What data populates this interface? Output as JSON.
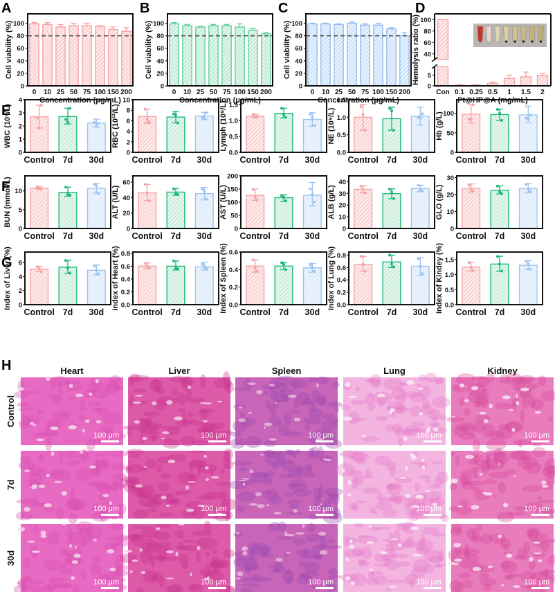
{
  "colors": {
    "control": "#f7a3a3",
    "d7": "#1fb878",
    "d30": "#9ec4f2",
    "panelA": "#f7a3a3",
    "panelB": "#5fcf9f",
    "panelC": "#8fbcf2",
    "panelD": "#f7a3a3",
    "axis": "#111111",
    "threshold": "#555555"
  },
  "chart_data": [
    {
      "id": "A",
      "type": "bar",
      "panel_label": "A",
      "ylabel": "Cell viability (%)",
      "xlabel": "Concentration (μg/mL)",
      "categories": [
        "0",
        "10",
        "25",
        "50",
        "75",
        "100",
        "150",
        "200"
      ],
      "values": [
        99,
        98,
        94,
        96,
        96,
        95,
        90,
        87
      ],
      "errors": [
        2,
        3,
        4,
        4,
        4,
        1,
        4,
        6
      ],
      "ylim": [
        0,
        115
      ],
      "yticks": [
        0,
        20,
        40,
        60,
        80,
        100
      ],
      "reference_line": 80,
      "color_key": "panelA"
    },
    {
      "id": "B",
      "type": "bar",
      "panel_label": "B",
      "ylabel": "Cell viability (%)",
      "xlabel": "Concentration (μg/mL)",
      "categories": [
        "0",
        "10",
        "25",
        "50",
        "75",
        "100",
        "150",
        "200"
      ],
      "values": [
        99,
        96,
        94,
        96,
        96,
        94,
        89,
        83
      ],
      "errors": [
        2,
        2,
        1,
        2,
        2,
        5,
        3,
        2
      ],
      "ylim": [
        0,
        115
      ],
      "yticks": [
        0,
        20,
        40,
        60,
        80,
        100
      ],
      "reference_line": 80,
      "color_key": "panelB"
    },
    {
      "id": "C",
      "type": "bar",
      "panel_label": "C",
      "ylabel": "Cell viability (%)",
      "xlabel": "Concentration (μg/mL)",
      "categories": [
        "0",
        "10",
        "25",
        "50",
        "75",
        "100",
        "150",
        "200"
      ],
      "values": [
        99,
        99,
        98,
        100,
        97,
        97,
        91,
        80
      ],
      "errors": [
        1,
        1,
        1,
        2,
        2,
        3,
        2,
        5
      ],
      "ylim": [
        0,
        115
      ],
      "yticks": [
        0,
        20,
        40,
        60,
        80,
        100
      ],
      "reference_line": 80,
      "color_key": "panelC"
    },
    {
      "id": "D",
      "type": "bar",
      "panel_label": "D",
      "ylabel": "Hemolysis ratio (%)",
      "xlabel": "Pt@HP@A (mg/mL)",
      "categories": [
        "Con",
        "0.1",
        "0.25",
        "0.5",
        "1",
        "1.5",
        "2"
      ],
      "values": [
        100,
        0.3,
        0.3,
        1.2,
        3.5,
        4.2,
        4.8
      ],
      "errors": [
        0,
        0.3,
        0.2,
        0.6,
        1.5,
        2.2,
        1.0
      ],
      "broken_axis": {
        "lower": [
          0,
          9
        ],
        "upper": [
          30,
          110
        ]
      },
      "yticks_lower": [
        0,
        5
      ],
      "yticks_upper": [
        40,
        60,
        80,
        100
      ],
      "inset": "photo of hemolysis tubes",
      "color_key": "panelD"
    }
  ],
  "groups": [
    "Control",
    "7d",
    "30d"
  ],
  "row_E": {
    "label": "E",
    "charts": [
      {
        "ylabel": "WBC (10⁹/L)",
        "ylim": [
          0,
          4
        ],
        "yticks": [
          "0",
          "1",
          "2",
          "3",
          "4"
        ],
        "ytick_values": [
          0,
          1,
          2,
          3,
          4
        ],
        "values": [
          2.7,
          2.72,
          2.22
        ],
        "err_lo": [
          1.85,
          2.15,
          1.92
        ],
        "err_hi": [
          3.58,
          3.35,
          2.52
        ],
        "points": [
          [
            2.6,
            1.85,
            3.58
          ],
          [
            2.5,
            2.3,
            3.35
          ],
          [
            2.3,
            2.0,
            2.2
          ]
        ]
      },
      {
        "ylabel": "RBC (10¹²/L)",
        "ylim": [
          0,
          10
        ],
        "yticks": [
          "0",
          "2",
          "4",
          "6",
          "8",
          "10"
        ],
        "ytick_values": [
          0,
          2,
          4,
          6,
          8,
          10
        ],
        "values": [
          6.8,
          6.7,
          6.9
        ],
        "err_lo": [
          5.5,
          5.6,
          6.2
        ],
        "err_hi": [
          8.2,
          7.8,
          7.6
        ],
        "points": [
          [
            8.2,
            6.3,
            5.8
          ],
          [
            7.3,
            7.1,
            5.6
          ],
          [
            6.6,
            6.5,
            7.5
          ]
        ]
      },
      {
        "ylabel": "Lymph (10⁹/L)",
        "ylim": [
          0,
          1.65
        ],
        "yticks": [
          "0.0",
          "0.5",
          "1.0",
          "1.5"
        ],
        "ytick_values": [
          0,
          0.5,
          1.0,
          1.5
        ],
        "values": [
          1.13,
          1.22,
          1.03
        ],
        "err_lo": [
          1.09,
          1.08,
          0.82
        ],
        "err_hi": [
          1.19,
          1.38,
          1.24
        ],
        "points": [
          [
            1.19,
            1.1,
            1.12
          ],
          [
            1.38,
            1.18,
            1.1
          ],
          [
            1.2,
            1.1,
            0.84
          ]
        ]
      },
      {
        "ylabel": "NE (10⁹/L)",
        "ylim": [
          0,
          1.5
        ],
        "yticks": [
          "0.0",
          "0.5",
          "1.0",
          "1.5"
        ],
        "ytick_values": [
          0,
          0.5,
          1.0,
          1.5
        ],
        "values": [
          1.0,
          0.96,
          1.03
        ],
        "err_lo": [
          0.63,
          0.63,
          0.78
        ],
        "err_hi": [
          1.36,
          1.29,
          1.29
        ],
        "points": [
          [
            1.3,
            1.08,
            0.63
          ],
          [
            1.25,
            1.18,
            0.63
          ],
          [
            1.0,
            0.98,
            1.1
          ]
        ]
      },
      {
        "ylabel": "Hb (g/L)",
        "ylim": [
          0,
          135
        ],
        "yticks": [
          "0",
          "50",
          "100"
        ],
        "ytick_values": [
          0,
          50,
          100
        ],
        "values": [
          98,
          97,
          96
        ],
        "err_lo": [
          75,
          82,
          76
        ],
        "err_hi": [
          122,
          111,
          118
        ],
        "points": [
          [
            85,
            85,
            122
          ],
          [
            110,
            100,
            82
          ],
          [
            88,
            85,
            95
          ]
        ]
      }
    ]
  },
  "row_F": {
    "label": "F",
    "charts": [
      {
        "ylabel": "BUN (mmol/L)",
        "ylim": [
          0,
          14
        ],
        "yticks": [
          "0",
          "5",
          "10"
        ],
        "ytick_values": [
          0,
          5,
          10
        ],
        "values": [
          10.7,
          9.6,
          10.7
        ],
        "err_lo": [
          10.4,
          8.6,
          9.4
        ],
        "err_hi": [
          11.1,
          11.0,
          12.0
        ],
        "points": [
          [
            11.1,
            10.6,
            10.5
          ],
          [
            11.0,
            9.2,
            8.9
          ],
          [
            11.8,
            11.4,
            9.3
          ]
        ]
      },
      {
        "ylabel": "ALT (U/L)",
        "ylim": [
          0,
          68
        ],
        "yticks": [
          "0",
          "20",
          "40",
          "60"
        ],
        "ytick_values": [
          0,
          20,
          40,
          60
        ],
        "values": [
          46,
          47,
          45
        ],
        "err_lo": [
          36,
          43,
          37
        ],
        "err_hi": [
          57,
          52,
          53
        ],
        "points": [
          [
            57,
            46,
            36
          ],
          [
            51,
            45,
            44
          ],
          [
            51,
            48,
            38
          ]
        ]
      },
      {
        "ylabel": "AST (U/L)",
        "ylim": [
          0,
          200
        ],
        "yticks": [
          "0",
          "50",
          "100",
          "150",
          "200"
        ],
        "ytick_values": [
          0,
          50,
          100,
          150,
          200
        ],
        "values": [
          126,
          117,
          126
        ],
        "err_lo": [
          107,
          103,
          86
        ],
        "err_hi": [
          150,
          128,
          175
        ],
        "points": [
          [
            148,
            120,
            108
          ],
          [
            125,
            118,
            105
          ],
          [
            150,
            130,
            100
          ]
        ]
      },
      {
        "ylabel": "ALB (g/L)",
        "ylim": [
          0,
          45
        ],
        "yticks": [
          "0",
          "10",
          "20",
          "30",
          "40"
        ],
        "ytick_values": [
          0,
          10,
          20,
          30,
          40
        ],
        "values": [
          33.5,
          29.8,
          34.1
        ],
        "err_lo": [
          30.5,
          25.5,
          31.5
        ],
        "err_hi": [
          36.5,
          34,
          37
        ],
        "points": [
          [
            36,
            33.5,
            30.5
          ],
          [
            33.5,
            31,
            25.5
          ],
          [
            37,
            33,
            32
          ]
        ]
      },
      {
        "ylabel": "GLO (g/L)",
        "ylim": [
          0,
          31
        ],
        "yticks": [
          "0",
          "10",
          "20",
          "30"
        ],
        "ytick_values": [
          0,
          10,
          20,
          30
        ],
        "values": [
          23.7,
          22.5,
          23.6
        ],
        "err_lo": [
          21.5,
          20.3,
          21
        ],
        "err_hi": [
          26.2,
          25.1,
          26.5
        ],
        "points": [
          [
            25.5,
            23,
            22
          ],
          [
            25,
            21.5,
            20.5
          ],
          [
            26,
            23,
            22
          ]
        ]
      }
    ]
  },
  "row_G": {
    "label": "G",
    "charts": [
      {
        "ylabel": "Index of Liver (%)",
        "ylim": [
          0,
          7.5
        ],
        "yticks": [
          "0",
          "2",
          "4",
          "6"
        ],
        "ytick_values": [
          0,
          2,
          4,
          6
        ],
        "values": [
          5.05,
          5.35,
          4.9
        ],
        "err_lo": [
          4.7,
          4.45,
          4.25
        ],
        "err_hi": [
          5.45,
          6.3,
          5.65
        ],
        "points": [
          [
            5.4,
            5.1,
            4.7
          ],
          [
            6.3,
            5.2,
            4.5
          ],
          [
            5.5,
            4.9,
            4.4
          ]
        ]
      },
      {
        "ylabel": "Index of Heart (%)",
        "ylim": [
          0,
          0.82
        ],
        "yticks": [
          "0.0",
          "0.2",
          "0.4",
          "0.6",
          "0.8"
        ],
        "ytick_values": [
          0,
          0.2,
          0.4,
          0.6,
          0.8
        ],
        "values": [
          0.6,
          0.6,
          0.59
        ],
        "err_lo": [
          0.56,
          0.54,
          0.54
        ],
        "err_hi": [
          0.65,
          0.68,
          0.66
        ],
        "points": [
          [
            0.64,
            0.6,
            0.57
          ],
          [
            0.68,
            0.57,
            0.56
          ],
          [
            0.63,
            0.59,
            0.56
          ]
        ]
      },
      {
        "ylabel": "Index of Spleen (%)",
        "ylim": [
          0,
          0.6
        ],
        "yticks": [
          "0.0",
          "0.2",
          "0.4",
          "0.6"
        ],
        "ytick_values": [
          0,
          0.2,
          0.4,
          0.6
        ],
        "values": [
          0.44,
          0.44,
          0.42
        ],
        "err_lo": [
          0.37,
          0.4,
          0.37
        ],
        "err_hi": [
          0.51,
          0.48,
          0.47
        ],
        "points": [
          [
            0.51,
            0.42,
            0.38
          ],
          [
            0.48,
            0.46,
            0.4
          ],
          [
            0.45,
            0.42,
            0.38
          ]
        ]
      },
      {
        "ylabel": "Index of Lung (%)",
        "ylim": [
          0,
          0.85
        ],
        "yticks": [
          "0.0",
          "0.2",
          "0.4",
          "0.6",
          "0.8"
        ],
        "ytick_values": [
          0,
          0.2,
          0.4,
          0.6,
          0.8
        ],
        "values": [
          0.65,
          0.69,
          0.62
        ],
        "err_lo": [
          0.54,
          0.6,
          0.47
        ],
        "err_hi": [
          0.78,
          0.8,
          0.76
        ],
        "points": [
          [
            0.78,
            0.65,
            0.54
          ],
          [
            0.8,
            0.66,
            0.61
          ],
          [
            0.74,
            0.62,
            0.5
          ]
        ]
      },
      {
        "ylabel": "Index of Kindey (%)",
        "ylim": [
          0,
          1.75
        ],
        "yticks": [
          "0.0",
          "0.5",
          "1.0",
          "1.5"
        ],
        "ytick_values": [
          0,
          0.5,
          1.0,
          1.5
        ],
        "values": [
          1.25,
          1.35,
          1.31
        ],
        "err_lo": [
          1.12,
          1.11,
          1.17
        ],
        "err_hi": [
          1.41,
          1.61,
          1.46
        ],
        "points": [
          [
            1.4,
            1.25,
            1.13
          ],
          [
            1.6,
            1.35,
            1.12
          ],
          [
            1.44,
            1.35,
            1.18
          ]
        ]
      }
    ]
  },
  "histology": {
    "label": "H",
    "columns": [
      "Heart",
      "Liver",
      "Spleen",
      "Lung",
      "Kidney"
    ],
    "rows": [
      "Control",
      "7d",
      "30d"
    ],
    "scale_bar": "100 μm"
  }
}
